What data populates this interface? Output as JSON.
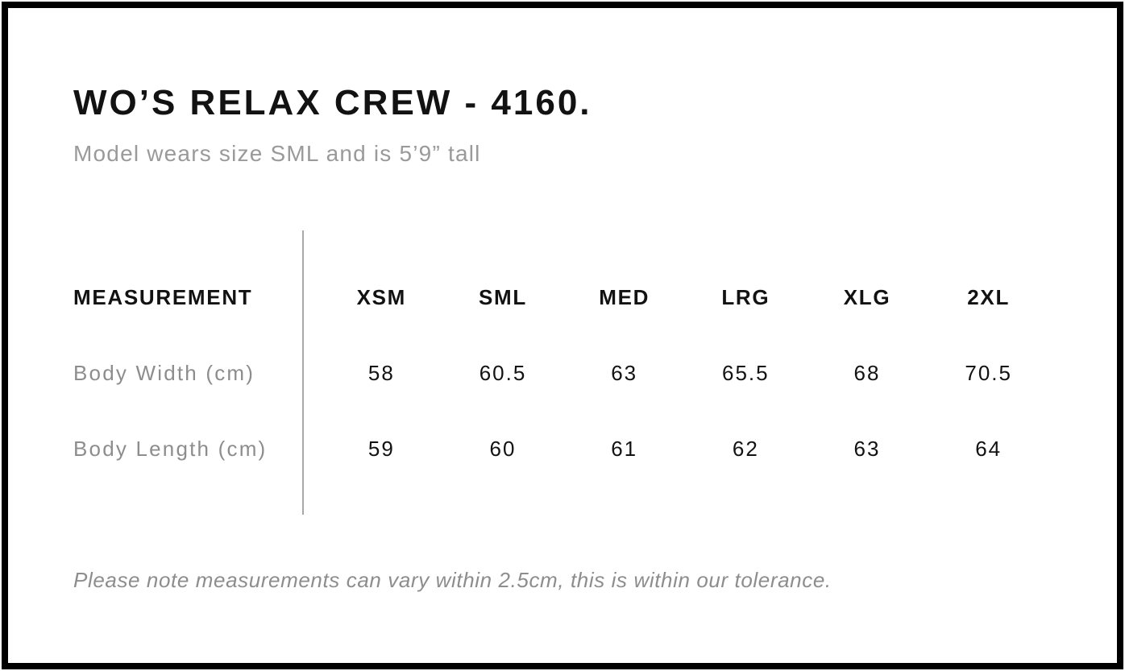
{
  "header": {
    "title": "WO’S RELAX CREW - 4160.",
    "subtitle": "Model wears size SML and is 5’9” tall"
  },
  "table": {
    "measurement_header": "MEASUREMENT",
    "size_headers": [
      "XSM",
      "SML",
      "MED",
      "LRG",
      "XLG",
      "2XL"
    ],
    "rows": [
      {
        "label": "Body Width (cm)",
        "values": [
          "58",
          "60.5",
          "63",
          "65.5",
          "68",
          "70.5"
        ]
      },
      {
        "label": "Body Length (cm)",
        "values": [
          "59",
          "60",
          "61",
          "62",
          "63",
          "64"
        ]
      }
    ]
  },
  "footer": {
    "note": "Please note measurements can vary within 2.5cm, this is within our tolerance."
  },
  "colors": {
    "frame": "#000000",
    "text": "#121212",
    "muted": "#8d8d8d",
    "subtitle": "#9a9a9a",
    "divider": "#a8a8a8"
  }
}
